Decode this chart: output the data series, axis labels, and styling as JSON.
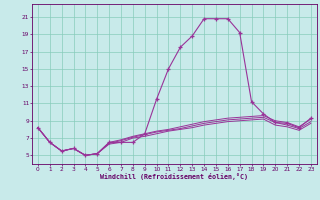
{
  "xlabel": "Windchill (Refroidissement éolien,°C)",
  "bg_color": "#c8eaea",
  "grid_color": "#88ccbb",
  "line_color": "#993399",
  "tick_color": "#660066",
  "xlim": [
    -0.5,
    23.5
  ],
  "ylim": [
    4.0,
    22.5
  ],
  "yticks": [
    5,
    7,
    9,
    11,
    13,
    15,
    17,
    19,
    21
  ],
  "xticks": [
    0,
    1,
    2,
    3,
    4,
    5,
    6,
    7,
    8,
    9,
    10,
    11,
    12,
    13,
    14,
    15,
    16,
    17,
    18,
    19,
    20,
    21,
    22,
    23
  ],
  "series": [
    {
      "x": [
        0,
        1,
        2,
        3,
        4,
        5,
        6,
        7,
        8,
        9,
        10,
        11,
        12,
        13,
        14,
        15,
        16,
        17,
        18,
        19,
        20,
        21,
        22,
        23
      ],
      "y": [
        8.2,
        6.5,
        5.5,
        5.8,
        5.0,
        5.2,
        6.5,
        6.5,
        6.5,
        7.5,
        11.5,
        15.0,
        17.5,
        18.8,
        20.8,
        20.8,
        20.8,
        19.2,
        11.2,
        9.8,
        8.8,
        8.7,
        8.2,
        9.3
      ],
      "marker": true
    },
    {
      "x": [
        0,
        1,
        2,
        3,
        4,
        5,
        6,
        7,
        8,
        9,
        10,
        11,
        12,
        13,
        14,
        15,
        16,
        17,
        18,
        19,
        20,
        21,
        22,
        23
      ],
      "y": [
        8.2,
        6.5,
        5.5,
        5.8,
        5.0,
        5.2,
        6.5,
        6.8,
        7.2,
        7.5,
        7.8,
        8.0,
        8.3,
        8.6,
        8.9,
        9.1,
        9.3,
        9.4,
        9.5,
        9.6,
        9.0,
        8.8,
        8.3,
        9.2
      ],
      "marker": false
    },
    {
      "x": [
        0,
        1,
        2,
        3,
        4,
        5,
        6,
        7,
        8,
        9,
        10,
        11,
        12,
        13,
        14,
        15,
        16,
        17,
        18,
        19,
        20,
        21,
        22,
        23
      ],
      "y": [
        8.2,
        6.5,
        5.5,
        5.8,
        5.0,
        5.2,
        6.4,
        6.7,
        7.1,
        7.4,
        7.7,
        7.9,
        8.1,
        8.4,
        8.7,
        8.9,
        9.1,
        9.2,
        9.3,
        9.4,
        8.8,
        8.5,
        8.1,
        8.9
      ],
      "marker": false
    },
    {
      "x": [
        0,
        1,
        2,
        3,
        4,
        5,
        6,
        7,
        8,
        9,
        10,
        11,
        12,
        13,
        14,
        15,
        16,
        17,
        18,
        19,
        20,
        21,
        22,
        23
      ],
      "y": [
        8.2,
        6.5,
        5.5,
        5.8,
        5.0,
        5.2,
        6.3,
        6.5,
        7.0,
        7.2,
        7.5,
        7.8,
        8.0,
        8.2,
        8.5,
        8.7,
        8.9,
        9.0,
        9.1,
        9.2,
        8.5,
        8.3,
        7.9,
        8.7
      ],
      "marker": false
    }
  ]
}
